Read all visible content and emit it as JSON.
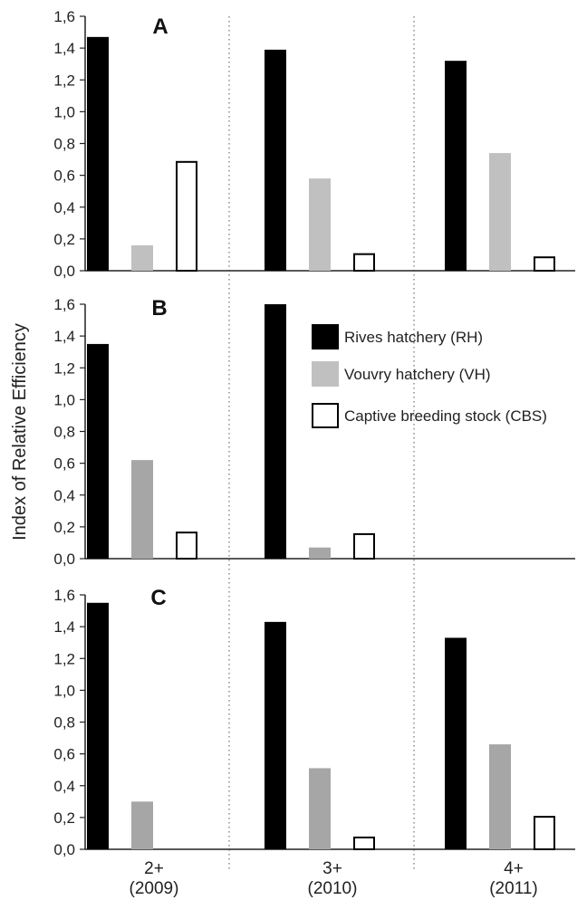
{
  "chart_data": {
    "type": "bar",
    "ylabel": "Index of Relative Efficiency",
    "categories": [
      "2+",
      "3+",
      "4+"
    ],
    "category_years": [
      "(2009)",
      "(2010)",
      "(2011)"
    ],
    "yticks": [
      "0,0",
      "0,2",
      "0,4",
      "0,6",
      "0,8",
      "1,0",
      "1,2",
      "1,4",
      "1,6"
    ],
    "ylim": [
      0,
      1.6
    ],
    "legend": {
      "placement": "panel B, right",
      "entries": [
        "Rives hatchery (RH)",
        "Vouvry hatchery (VH)",
        "Captive breeding stock (CBS)"
      ]
    },
    "colors": {
      "RH": "#000000",
      "VH_A": "#c0c0c0",
      "VH": "#a6a6a6",
      "CBS": "#ffffff",
      "CBS_stroke": "#000000"
    },
    "panels": [
      {
        "label": "A",
        "series": [
          {
            "name": "Rives hatchery (RH)",
            "values": [
              1.47,
              1.39,
              1.32
            ]
          },
          {
            "name": "Vouvry hatchery (VH)",
            "values": [
              0.16,
              0.58,
              0.74
            ]
          },
          {
            "name": "Captive breeding stock (CBS)",
            "values": [
              0.69,
              0.11,
              0.09
            ]
          }
        ]
      },
      {
        "label": "B",
        "series": [
          {
            "name": "Rives hatchery (RH)",
            "values": [
              1.35,
              1.6,
              null
            ]
          },
          {
            "name": "Vouvry hatchery (VH)",
            "values": [
              0.62,
              0.07,
              null
            ]
          },
          {
            "name": "Captive breeding stock (CBS)",
            "values": [
              0.17,
              0.16,
              null
            ]
          }
        ]
      },
      {
        "label": "C",
        "series": [
          {
            "name": "Rives hatchery (RH)",
            "values": [
              1.55,
              1.43,
              1.33
            ]
          },
          {
            "name": "Vouvry hatchery (VH)",
            "values": [
              0.3,
              0.51,
              0.66
            ]
          },
          {
            "name": "Captive breeding stock (CBS)",
            "values": [
              null,
              0.08,
              0.21
            ]
          }
        ]
      }
    ]
  }
}
